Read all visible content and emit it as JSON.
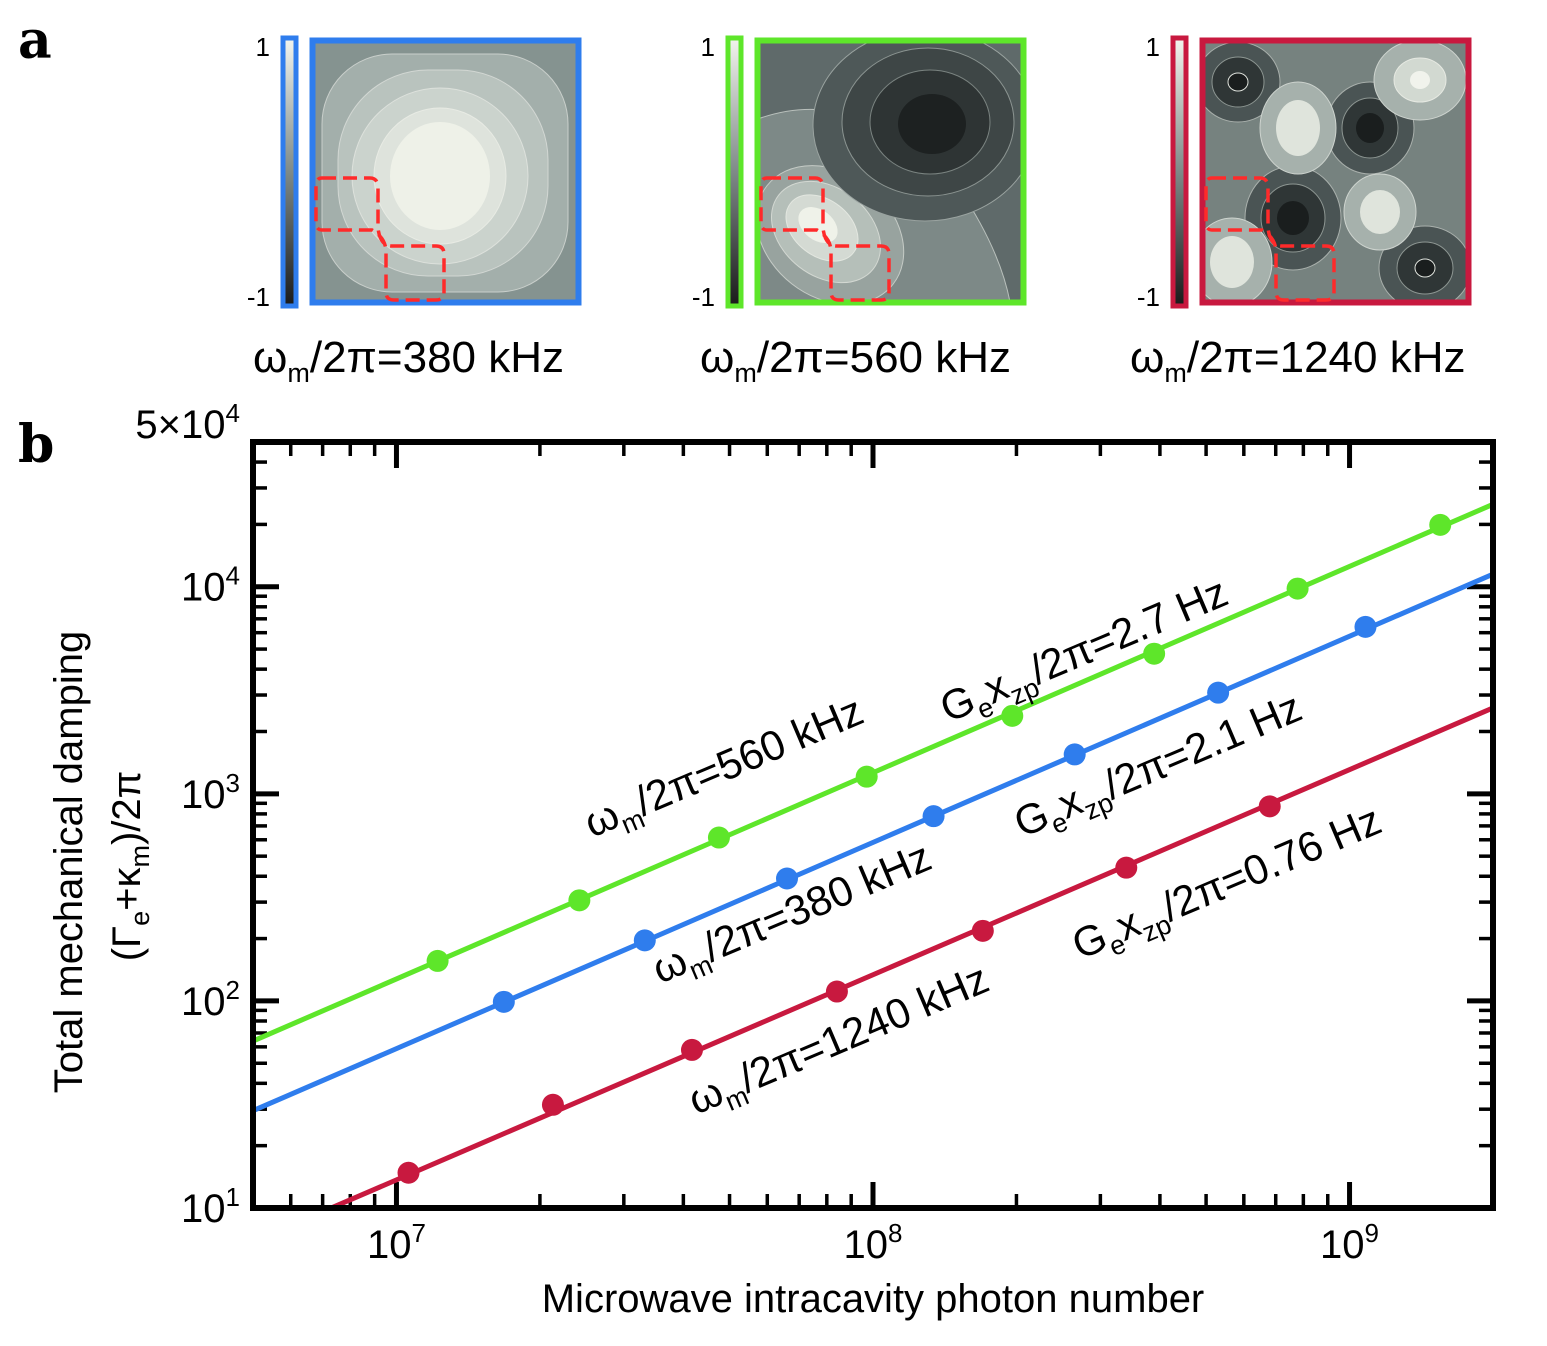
{
  "panel_a": {
    "letter": "a",
    "colorbar_max": "1",
    "colorbar_min": "-1",
    "maps": [
      {
        "caption_main": "ω",
        "caption_sub": "m",
        "caption_rest": "/2π=380 kHz",
        "frame_color": "#2f7ded"
      },
      {
        "caption_main": "ω",
        "caption_sub": "m",
        "caption_rest": "/2π=560 kHz",
        "frame_color": "#5ee62a"
      },
      {
        "caption_main": "ω",
        "caption_sub": "m",
        "caption_rest": "/2π=1240 kHz",
        "frame_color": "#c8193f"
      }
    ]
  },
  "panel_b": {
    "letter": "b"
  },
  "chart_data": {
    "type": "scatter",
    "xscale": "log",
    "yscale": "log",
    "xlim": [
      5000000,
      2000000000
    ],
    "ylim": [
      10,
      50000
    ],
    "xlabel": "Microwave intracavity photon number",
    "ylabel": {
      "line1": "Total mechanical damping",
      "line2_a": "(Γ",
      "line2_sub1": "e",
      "line2_b": "+κ",
      "line2_sub2": "m",
      "line2_c": ")/2π"
    },
    "x_ticks": [
      {
        "value": 10000000,
        "base": "10",
        "exp": "7"
      },
      {
        "value": 100000000,
        "base": "10",
        "exp": "8"
      },
      {
        "value": 1000000000,
        "base": "10",
        "exp": "9"
      }
    ],
    "y_ticks": [
      {
        "value": 10,
        "base": "10",
        "exp": "1"
      },
      {
        "value": 100,
        "base": "10",
        "exp": "2"
      },
      {
        "value": 1000,
        "base": "10",
        "exp": "3"
      },
      {
        "value": 10000,
        "base": "10",
        "exp": "4"
      },
      {
        "value": 50000,
        "base": "5×10",
        "exp": "4"
      }
    ],
    "series": [
      {
        "name": "ωm/2π=560 kHz",
        "color": "#5ee62a",
        "x": [
          12200000,
          24200000,
          47500000,
          97000000,
          196000000,
          389000000,
          778000000,
          1550000000
        ],
        "y": [
          156,
          306,
          615,
          1210,
          2380,
          4750,
          9800,
          19900
        ],
        "fit": {
          "x0": 5000000,
          "y0": 64,
          "x1": 2000000000,
          "y1": 25000
        },
        "label_main": "ω",
        "label_sub": "m",
        "label_rest": "/2π=560 kHz",
        "coupling_main": "G",
        "coupling_sub1": "e",
        "coupling_mid": "x",
        "coupling_sub2": "zp",
        "coupling_rest": "/2π=2.7 Hz"
      },
      {
        "name": "ωm/2π=380 kHz",
        "color": "#2f7ded",
        "x": [
          16800000,
          33200000,
          66000000,
          134000000,
          265000000,
          530000000,
          1080000000
        ],
        "y": [
          99,
          196,
          390,
          780,
          1550,
          3080,
          6400
        ],
        "fit": {
          "x0": 5000000,
          "y0": 29.5,
          "x1": 2000000000,
          "y1": 11500
        },
        "label_main": "ω",
        "label_sub": "m",
        "label_rest": "/2π=380 kHz",
        "coupling_main": "G",
        "coupling_sub1": "e",
        "coupling_mid": "x",
        "coupling_sub2": "zp",
        "coupling_rest": "/2π=2.1 Hz"
      },
      {
        "name": "ωm/2π=1240 kHz",
        "color": "#c8193f",
        "x": [
          10600000,
          21300000,
          41700000,
          84000000,
          170000000,
          340000000,
          680000000
        ],
        "y": [
          14.8,
          31.5,
          58,
          111,
          218,
          440,
          870
        ],
        "fit": {
          "x0": 7000000,
          "y0": 9.6,
          "x1": 2000000000,
          "y1": 2600
        },
        "label_main": "ω",
        "label_sub": "m",
        "label_rest": "/2π=1240 kHz",
        "coupling_main": "G",
        "coupling_sub1": "e",
        "coupling_mid": "x",
        "coupling_sub2": "zp",
        "coupling_rest": "/2π=0.76 Hz"
      }
    ]
  }
}
